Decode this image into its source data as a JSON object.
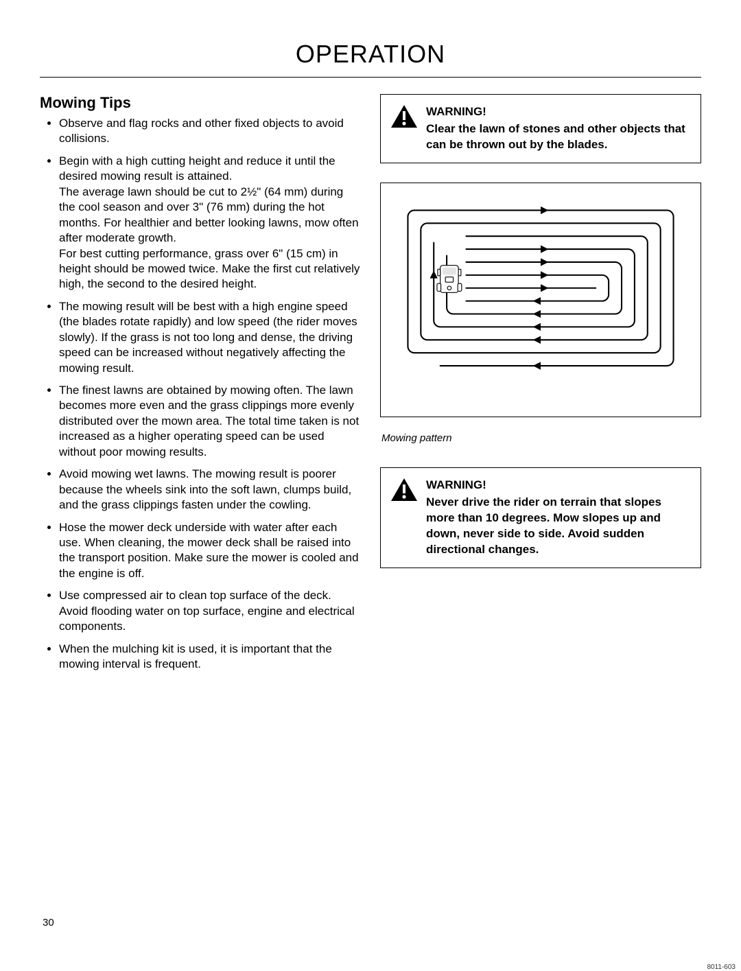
{
  "header": {
    "title": "OPERATION"
  },
  "left": {
    "heading": "Mowing Tips",
    "bullets": [
      {
        "paras": [
          "Observe and flag rocks and other fixed objects to avoid collisions."
        ]
      },
      {
        "paras": [
          "Begin with a high cutting height and reduce it until the desired mowing result is attained.",
          "The average lawn should be cut to 2½\" (64 mm) during the cool season and over 3\" (76 mm) during the hot months. For healthier and better looking lawns, mow often after moderate growth.",
          "For best cutting performance, grass over 6\" (15 cm) in height should be mowed twice. Make the first cut relatively high, the second to the desired height."
        ]
      },
      {
        "paras": [
          "The mowing result will be best with a high engine speed (the blades rotate rapidly) and low speed (the rider moves slowly). If the grass is not too long and dense, the driving speed can be increased without negatively affecting the mowing result."
        ]
      },
      {
        "paras": [
          "The finest lawns are obtained by mowing often. The lawn becomes more even and the grass clippings more evenly distributed over the mown area. The total time taken is not increased as a higher operating speed can be used without poor mowing results."
        ]
      },
      {
        "paras": [
          "Avoid mowing wet lawns. The mowing result is poorer because the wheels sink into the soft lawn, clumps build, and the grass clippings fasten under the cowling."
        ]
      },
      {
        "paras": [
          "Hose the mower deck underside with water after each use. When cleaning, the mower deck shall be raised into the transport position. Make sure the mower is cooled and the engine is off."
        ]
      },
      {
        "paras": [
          "Use compressed air to clean top surface of the deck. Avoid flooding water on top surface, engine and electrical components."
        ]
      },
      {
        "paras": [
          "When the mulching kit is used, it is important that the mowing interval is frequent."
        ]
      }
    ]
  },
  "right": {
    "warning1": {
      "label": "WARNING!",
      "body": "Clear the lawn of stones and other objects that can be thrown out by the blades."
    },
    "figure": {
      "code": "8011-603",
      "caption": "Mowing pattern",
      "stroke": "#000000",
      "stroke_width": 2.2,
      "bg": "#ffffff"
    },
    "warning2": {
      "label": "WARNING!",
      "body": "Never drive the rider on terrain that slopes more than 10 degrees. Mow slopes up and down, never side to side. Avoid sudden directional changes."
    }
  },
  "page_number": "30"
}
